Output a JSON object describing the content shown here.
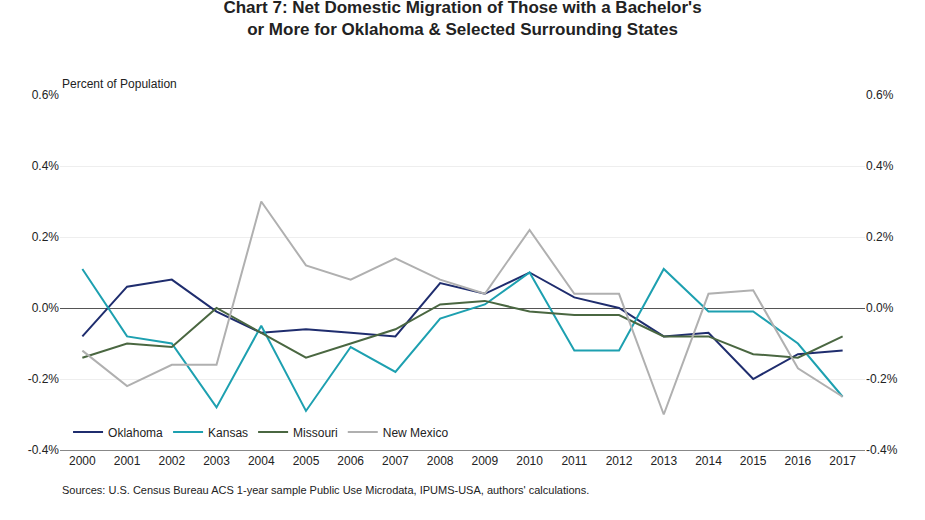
{
  "chart_data": {
    "type": "line",
    "title": "Chart 7: Net Domestic Migration of Those with a Bachelor's\nor More for Oklahoma & Selected Surrounding States",
    "ylabel": "Percent of Population",
    "source": "Sources: U.S. Census Bureau ACS 1-year sample Public Use Microdata, IPUMS-USA, authors' calculations.",
    "x": [
      2000,
      2001,
      2002,
      2003,
      2004,
      2005,
      2006,
      2007,
      2008,
      2009,
      2010,
      2011,
      2012,
      2013,
      2014,
      2015,
      2016,
      2017
    ],
    "xlim": [
      1999.5,
      2017.5
    ],
    "xticks": [
      2000,
      2001,
      2002,
      2003,
      2004,
      2005,
      2006,
      2007,
      2008,
      2009,
      2010,
      2011,
      2012,
      2013,
      2014,
      2015,
      2016,
      2017
    ],
    "series": [
      {
        "name": "Oklahoma",
        "color": "#1f2d6e",
        "values": [
          -0.08,
          0.06,
          0.08,
          -0.01,
          -0.07,
          -0.06,
          -0.07,
          -0.08,
          0.07,
          0.04,
          0.1,
          0.03,
          0.0,
          -0.08,
          -0.07,
          -0.2,
          -0.13,
          -0.12
        ]
      },
      {
        "name": "Kansas",
        "color": "#1da0b0",
        "values": [
          0.11,
          -0.08,
          -0.1,
          -0.28,
          -0.05,
          -0.29,
          -0.11,
          -0.18,
          -0.03,
          0.01,
          0.1,
          -0.12,
          -0.12,
          0.11,
          -0.01,
          -0.01,
          -0.1,
          -0.25
        ]
      },
      {
        "name": "Missouri",
        "color": "#4a6741",
        "values": [
          -0.14,
          -0.1,
          -0.11,
          0.0,
          -0.07,
          -0.14,
          -0.1,
          -0.06,
          0.01,
          0.02,
          -0.01,
          -0.02,
          -0.02,
          -0.08,
          -0.08,
          -0.13,
          -0.14,
          -0.08
        ]
      },
      {
        "name": "New Mexico",
        "color": "#b0b0b0",
        "values": [
          -0.12,
          -0.22,
          -0.16,
          -0.16,
          0.3,
          0.12,
          0.08,
          0.14,
          0.08,
          0.04,
          0.22,
          0.04,
          0.04,
          -0.3,
          0.04,
          0.05,
          -0.17,
          -0.25
        ]
      }
    ],
    "ylim": [
      -0.4,
      0.6
    ],
    "yticks": [
      {
        "value": -0.4,
        "label": "-0.4%"
      },
      {
        "value": -0.2,
        "label": "-0.2%"
      },
      {
        "value": 0.0,
        "label": "0.0%"
      },
      {
        "value": 0.2,
        "label": "0.2%"
      },
      {
        "value": 0.4,
        "label": "0.4%"
      },
      {
        "value": 0.6,
        "label": "0.6%"
      }
    ],
    "y2lim": [
      -0.4,
      0.6
    ],
    "y2ticks": [
      {
        "value": -0.4,
        "label": "-0.4%"
      },
      {
        "value": -0.2,
        "label": "-0.2%"
      },
      {
        "value": 0.0,
        "label": "0.0%"
      },
      {
        "value": 0.2,
        "label": "0.2%"
      },
      {
        "value": 0.4,
        "label": "0.4%"
      },
      {
        "value": 0.6,
        "label": "0.6%"
      }
    ],
    "grid": true,
    "legend": "lower left"
  }
}
